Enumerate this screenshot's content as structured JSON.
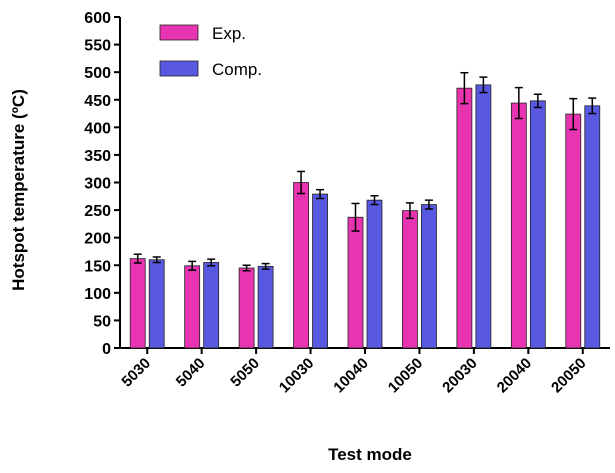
{
  "chart_data": {
    "type": "bar",
    "xlabel": "Test mode",
    "ylabel": "Hotspot temperature (ºC)",
    "ylim": [
      0,
      600
    ],
    "yticks": [
      0,
      50,
      100,
      150,
      200,
      250,
      300,
      350,
      400,
      450,
      500,
      550,
      600
    ],
    "grid": false,
    "legend_position": "top-left",
    "categories": [
      "5030",
      "5040",
      "5050",
      "10030",
      "10040",
      "10050",
      "20030",
      "20040",
      "20050"
    ],
    "series": [
      {
        "name": "Exp.",
        "color": "#e934b1",
        "values": [
          162,
          149,
          145,
          300,
          237,
          249,
          471,
          444,
          424
        ],
        "errors": [
          8,
          8,
          5,
          20,
          25,
          14,
          28,
          28,
          28
        ]
      },
      {
        "name": "Comp.",
        "color": "#5958e0",
        "values": [
          160,
          155,
          148,
          279,
          268,
          260,
          477,
          448,
          439
        ],
        "errors": [
          5,
          6,
          5,
          8,
          8,
          8,
          14,
          12,
          14
        ]
      }
    ]
  }
}
